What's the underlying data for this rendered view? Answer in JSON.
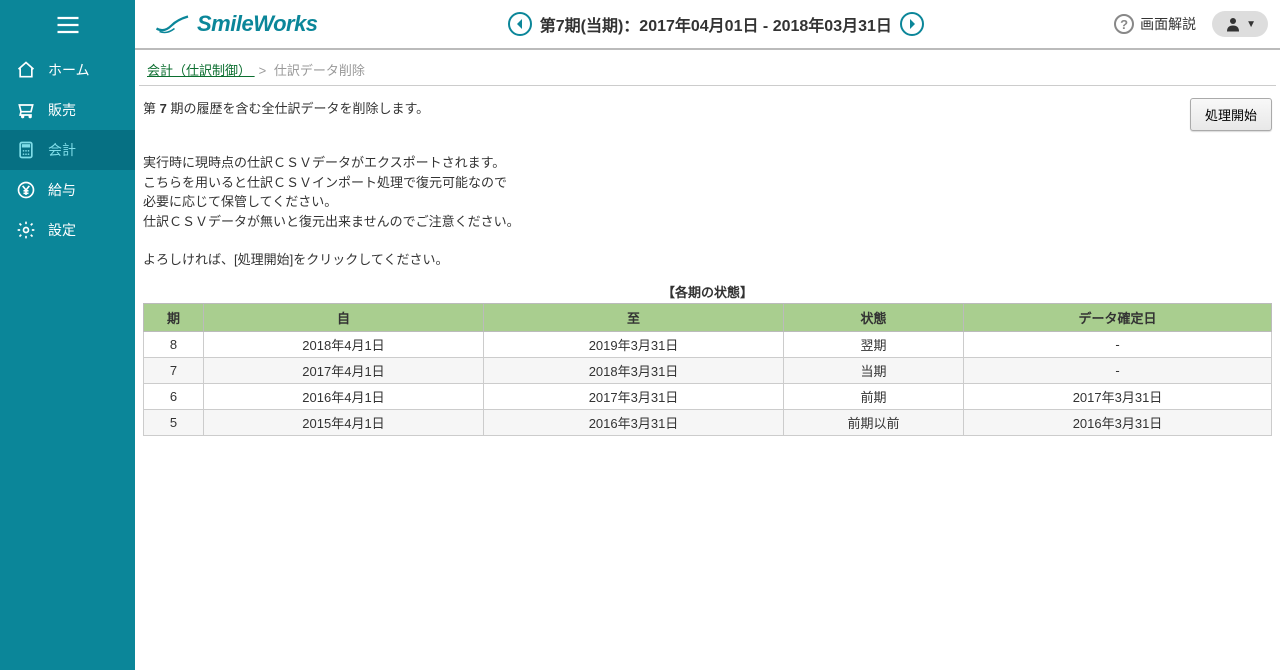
{
  "sidebar": {
    "items": [
      {
        "label": "ホーム",
        "icon": "home"
      },
      {
        "label": "販売",
        "icon": "cart"
      },
      {
        "label": "会計",
        "icon": "calc",
        "active": true
      },
      {
        "label": "給与",
        "icon": "yen"
      },
      {
        "label": "設定",
        "icon": "gear"
      }
    ]
  },
  "header": {
    "logo": "SmileWorks",
    "period_text": "第7期(当期)：2017年04月01日 - 2018年03月31日",
    "help_label": "画面解説"
  },
  "breadcrumb": {
    "parent": " 会計（仕訳制御） ",
    "current": "仕訳データ削除"
  },
  "content": {
    "desc_prefix": "第 ",
    "desc_period": "7",
    "desc_suffix": " 期の履歴を含む全仕訳データを削除します。",
    "action_button": "処理開始",
    "info_lines": [
      "実行時に現時点の仕訳ＣＳＶデータがエクスポートされます。",
      "こちらを用いると仕訳ＣＳＶインポート処理で復元可能なので",
      "必要に応じて保管してください。",
      "仕訳ＣＳＶデータが無いと復元出来ませんのでご注意ください。"
    ],
    "confirm": "よろしければ、[処理開始]をクリックしてください。",
    "table_title": "【各期の状態】",
    "table": {
      "columns": [
        "期",
        "自",
        "至",
        "状態",
        "データ確定日"
      ],
      "col_widths": [
        "60px",
        "280px",
        "300px",
        "180px",
        "auto"
      ],
      "rows": [
        [
          "8",
          "2018年4月1日",
          "2019年3月31日",
          "翌期",
          "-"
        ],
        [
          "7",
          "2017年4月1日",
          "2018年3月31日",
          "当期",
          "-"
        ],
        [
          "6",
          "2016年4月1日",
          "2017年3月31日",
          "前期",
          "2017年3月31日"
        ],
        [
          "5",
          "2015年4月1日",
          "2016年3月31日",
          "前期以前",
          "2016年3月31日"
        ]
      ]
    }
  },
  "colors": {
    "sidebar_bg": "#0b8699",
    "sidebar_active": "#067083",
    "accent": "#0b8699",
    "table_header": "#a9ce8f",
    "link": "#0b6e2f"
  }
}
